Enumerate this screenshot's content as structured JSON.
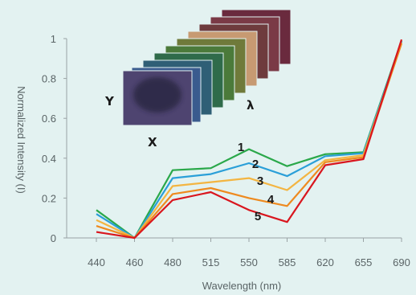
{
  "chart_data": {
    "type": "line",
    "title": "",
    "xlabel": "Wavelength (nm)",
    "ylabel": "Normalized Intensity (I)",
    "categories": [
      "440",
      "460",
      "480",
      "515",
      "550",
      "585",
      "620",
      "655",
      "690"
    ],
    "ylim": [
      0,
      1
    ],
    "yticks": [
      "0",
      "0.2",
      "0.4",
      "0.6",
      "0.8",
      "1"
    ],
    "grid": false,
    "series": [
      {
        "name": "1",
        "color": "#2aa84a",
        "values": [
          0.14,
          0.0,
          0.34,
          0.35,
          0.445,
          0.36,
          0.42,
          0.43,
          0.99
        ]
      },
      {
        "name": "2",
        "color": "#2a9fd8",
        "values": [
          0.12,
          0.0,
          0.3,
          0.32,
          0.375,
          0.31,
          0.41,
          0.425,
          0.985
        ]
      },
      {
        "name": "3",
        "color": "#f3b542",
        "values": [
          0.09,
          0.0,
          0.26,
          0.28,
          0.3,
          0.24,
          0.39,
          0.415,
          0.98
        ]
      },
      {
        "name": "4",
        "color": "#ee8a1f",
        "values": [
          0.06,
          0.0,
          0.22,
          0.25,
          0.2,
          0.16,
          0.38,
          0.405,
          0.975
        ]
      },
      {
        "name": "5",
        "color": "#d9161e",
        "values": [
          0.03,
          0.0,
          0.19,
          0.23,
          0.14,
          0.08,
          0.365,
          0.395,
          0.995
        ]
      }
    ],
    "inset_axis_labels": {
      "y": "Y",
      "x": "X",
      "lambda": "λ"
    }
  }
}
